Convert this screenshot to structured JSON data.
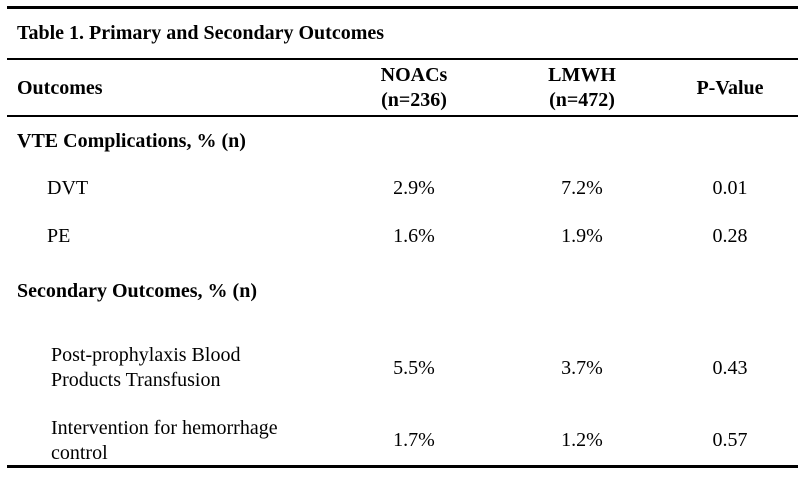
{
  "table": {
    "caption": "Table 1. Primary and Secondary Outcomes",
    "headers": {
      "outcomes": "Outcomes",
      "noacs_line1": "NOACs",
      "noacs_line2": "(n=236)",
      "lmwh_line1": "LMWH",
      "lmwh_line2": "(n=472)",
      "pvalue": "P-Value"
    },
    "sections": [
      {
        "title": "VTE Complications, % (n)",
        "rows": [
          {
            "label": [
              "DVT"
            ],
            "noacs": "2.9%",
            "lmwh": "7.2%",
            "p": "0.01"
          },
          {
            "label": [
              "PE"
            ],
            "noacs": "1.6%",
            "lmwh": "1.9%",
            "p": "0.28"
          }
        ]
      },
      {
        "title": "Secondary Outcomes, % (n)",
        "rows": [
          {
            "label": [
              "Post-prophylaxis Blood",
              "Products Transfusion"
            ],
            "noacs": "5.5%",
            "lmwh": "3.7%",
            "p": "0.43"
          },
          {
            "label": [
              "Intervention for hemorrhage",
              "control"
            ],
            "noacs": "1.7%",
            "lmwh": "1.2%",
            "p": "0.57"
          }
        ]
      }
    ]
  }
}
